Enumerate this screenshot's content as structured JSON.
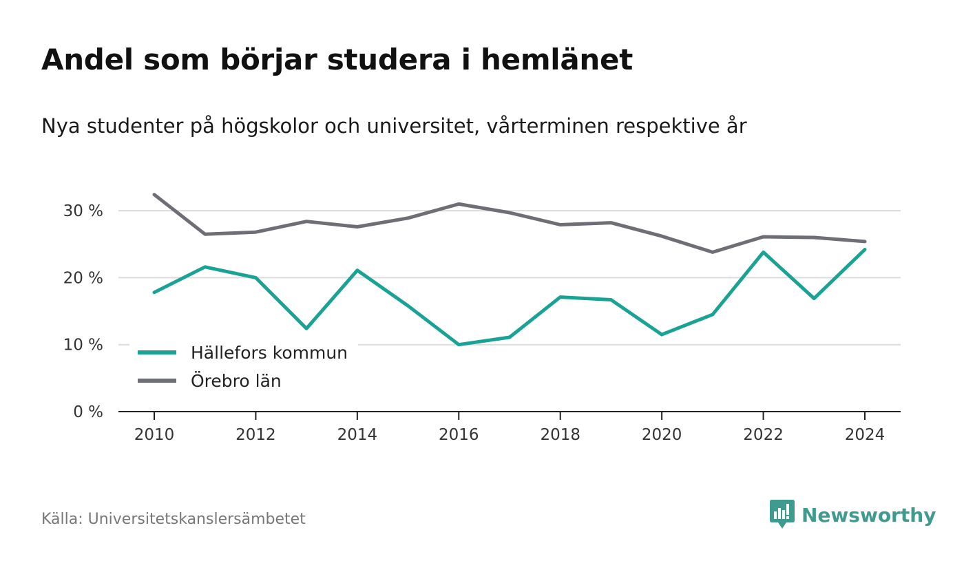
{
  "title": "Andel som börjar studera i hemlänet",
  "subtitle": "Nya studenter på högskolor och universitet, vårterminen respektive år",
  "source": "Källa: Universitetskanslersämbetet",
  "brand": {
    "name": "Newsworthy",
    "icon": "newsworthy-logo-icon",
    "color": "#3f9a90"
  },
  "chart_data": {
    "type": "line",
    "x": [
      2010,
      2011,
      2012,
      2013,
      2014,
      2015,
      2016,
      2017,
      2018,
      2019,
      2020,
      2021,
      2022,
      2023,
      2024
    ],
    "xticks": [
      "2010",
      "2012",
      "2014",
      "2016",
      "2018",
      "2020",
      "2022",
      "2024"
    ],
    "yticks": [
      "0 %",
      "10 %",
      "20 %",
      "30 %"
    ],
    "ylim": [
      0,
      35
    ],
    "grid": true,
    "legend_position": "bottom-left",
    "series": [
      {
        "name": "Hällefors kommun",
        "color": "#1aa294",
        "values": [
          17.8,
          21.6,
          20.0,
          12.4,
          21.1,
          15.8,
          10.0,
          11.1,
          17.1,
          16.7,
          11.5,
          14.5,
          23.8,
          16.9,
          24.2
        ]
      },
      {
        "name": "Örebro län",
        "color": "#6e6e76",
        "values": [
          32.4,
          26.5,
          26.8,
          28.4,
          27.6,
          28.9,
          31.0,
          29.7,
          27.9,
          28.2,
          26.2,
          23.8,
          26.1,
          26.0,
          25.4
        ]
      }
    ]
  }
}
